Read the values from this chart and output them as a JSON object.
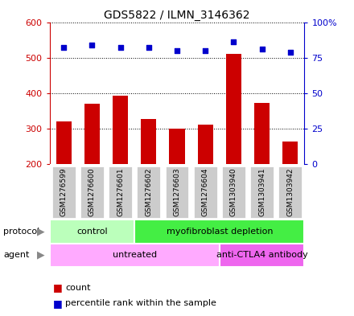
{
  "title": "GDS5822 / ILMN_3146362",
  "samples": [
    "GSM1276599",
    "GSM1276600",
    "GSM1276601",
    "GSM1276602",
    "GSM1276603",
    "GSM1276604",
    "GSM1303940",
    "GSM1303941",
    "GSM1303942"
  ],
  "counts": [
    320,
    370,
    393,
    327,
    300,
    311,
    510,
    372,
    265
  ],
  "percentile_ranks": [
    82,
    84,
    82,
    82,
    80,
    80,
    86,
    81,
    79
  ],
  "ylim_left": [
    200,
    600
  ],
  "ylim_right": [
    0,
    100
  ],
  "yticks_left": [
    200,
    300,
    400,
    500,
    600
  ],
  "yticks_right": [
    0,
    25,
    50,
    75,
    100
  ],
  "bar_color": "#cc0000",
  "dot_color": "#0000cc",
  "protocol_groups": [
    {
      "label": "control",
      "start": 0,
      "end": 3,
      "color": "#bbffbb"
    },
    {
      "label": "myofibroblast depletion",
      "start": 3,
      "end": 9,
      "color": "#44ee44"
    }
  ],
  "agent_groups": [
    {
      "label": "untreated",
      "start": 0,
      "end": 6,
      "color": "#ffaaff"
    },
    {
      "label": "anti-CTLA4 antibody",
      "start": 6,
      "end": 9,
      "color": "#ee66ee"
    }
  ],
  "sample_box_color": "#cccccc",
  "left_axis_color": "#cc0000",
  "right_axis_color": "#0000cc",
  "legend_count_color": "#cc0000",
  "legend_pct_color": "#0000cc"
}
